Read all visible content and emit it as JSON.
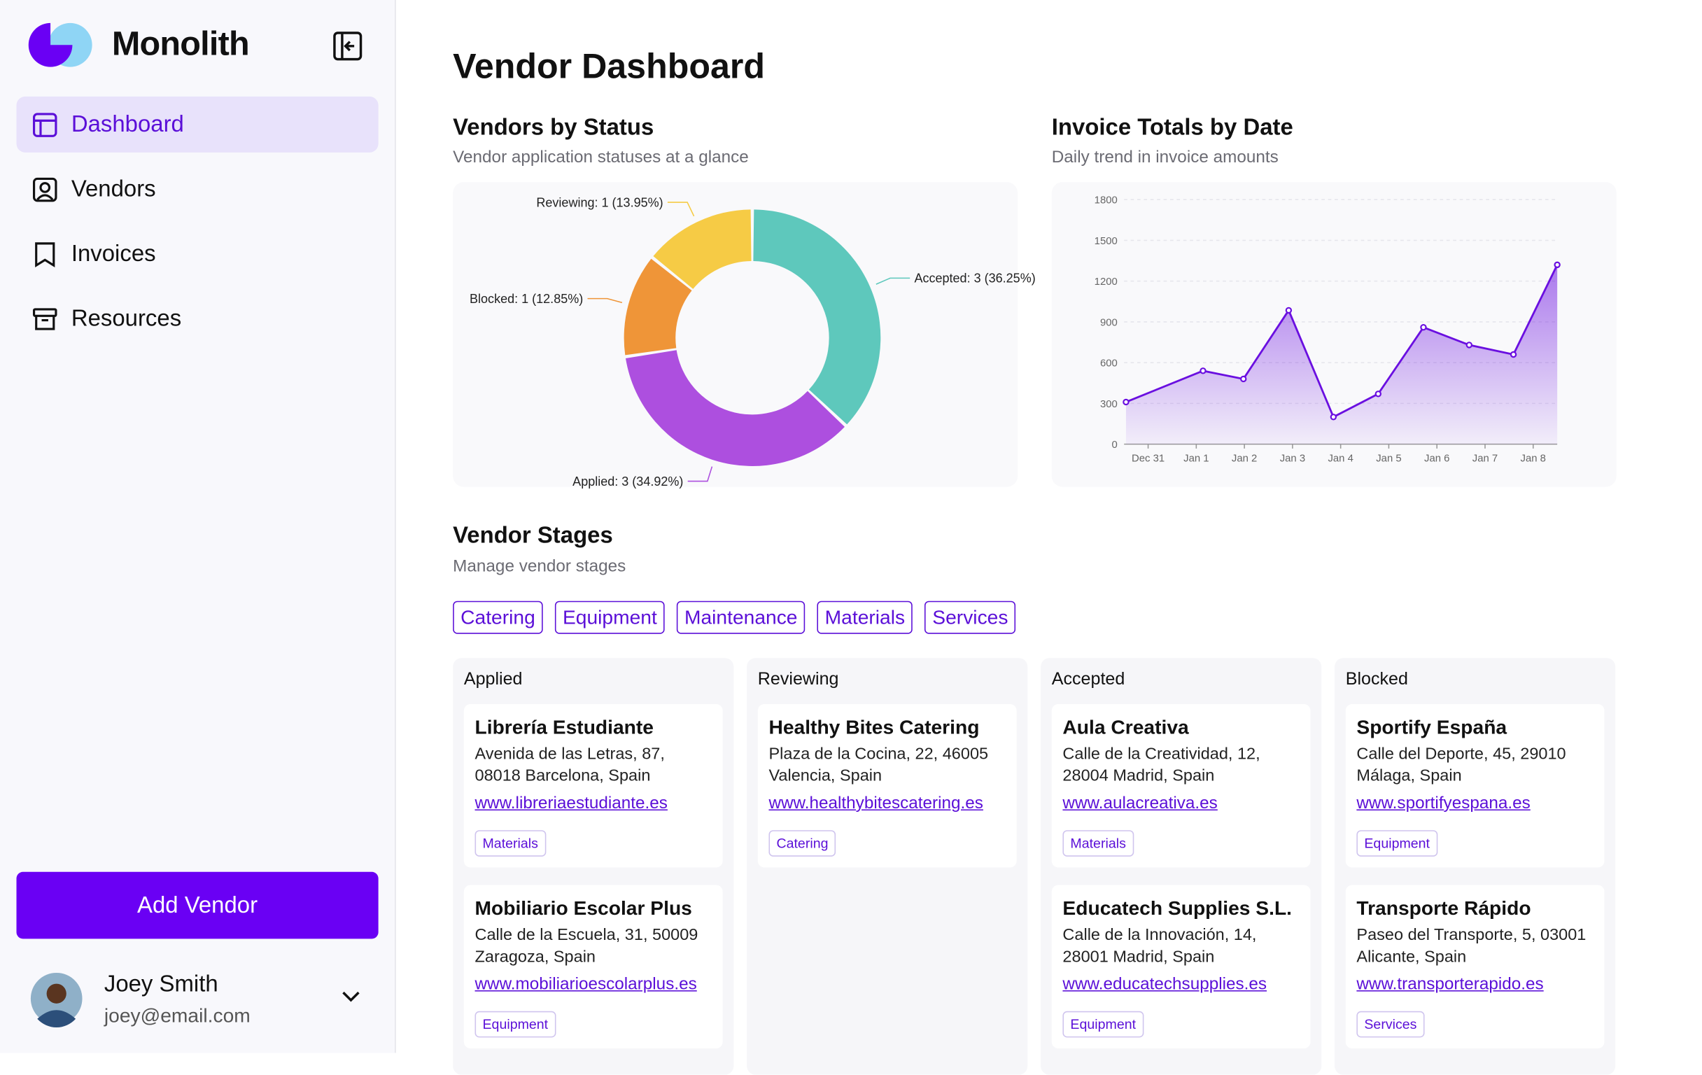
{
  "sidebar": {
    "brand": "Monolith",
    "nav": [
      "Dashboard",
      "Vendors",
      "Invoices",
      "Resources"
    ],
    "button": "Add Vendor",
    "user": {
      "name": "Joey Smith",
      "email": "joey@email.com"
    }
  },
  "header": {
    "title": "Vendor Dashboard"
  },
  "chart_data": [
    {
      "type": "pie",
      "title": "Vendors by Status",
      "subtitle": "Vendor application statuses at a glance",
      "values": [
        36.25,
        34.92,
        12.85,
        13.95
      ],
      "value_labels": [
        "Accepted: 3 (36.25%)",
        "Applied: 3 (34.92%)",
        "Blocked: 1 (12.85%)",
        "Reviewing: 1 (13.95%)"
      ],
      "colors": [
        "#5ec8bc",
        "#ad4fdf",
        "#ef9538",
        "#f6cb45"
      ]
    },
    {
      "type": "line",
      "title": "Invoice Totals by Date",
      "subtitle": "Daily trend in invoice amounts",
      "x": [
        -0.46,
        1.14,
        1.98,
        2.92,
        3.85,
        4.78,
        5.72,
        6.67,
        7.59,
        8.5
      ],
      "values": [
        310,
        540,
        480,
        985,
        200,
        370,
        860,
        730,
        660,
        1320
      ],
      "xlim": [
        -0.5,
        8.5
      ],
      "xticks": [
        {
          "value": 0,
          "label": "Dec 31"
        },
        {
          "value": 1,
          "label": "Jan 1"
        },
        {
          "value": 2,
          "label": "Jan 2"
        },
        {
          "value": 3,
          "label": "Jan 3"
        },
        {
          "value": 4,
          "label": "Jan 4"
        },
        {
          "value": 5,
          "label": "Jan 5"
        },
        {
          "value": 6,
          "label": "Jan 6"
        },
        {
          "value": 7,
          "label": "Jan 7"
        },
        {
          "value": 8,
          "label": "Jan 8"
        }
      ],
      "ylim": [
        0,
        1800
      ],
      "yticks": [
        0,
        300,
        600,
        900,
        1200,
        1500,
        1800
      ],
      "grid": true,
      "color": "#6a0fe0"
    }
  ],
  "stages": {
    "title": "Vendor Stages",
    "subtitle": "Manage vendor stages",
    "filters": [
      "Catering",
      "Equipment",
      "Maintenance",
      "Materials",
      "Services"
    ],
    "columns": [
      {
        "name": "Applied",
        "vendors": [
          {
            "name": "Librería Estudiante",
            "address": "Avenida de las Letras, 87, 08018 Barcelona, Spain",
            "url": "www.libreriaestudiante.es",
            "tag": "Materials"
          },
          {
            "name": "Mobiliario Escolar Plus",
            "address": "Calle de la Escuela, 31, 50009 Zaragoza, Spain",
            "url": "www.mobiliarioescolarplus.es",
            "tag": "Equipment"
          }
        ]
      },
      {
        "name": "Reviewing",
        "vendors": [
          {
            "name": "Healthy Bites Catering",
            "address": "Plaza de la Cocina, 22, 46005 Valencia, Spain",
            "url": "www.healthybitescatering.es",
            "tag": "Catering"
          }
        ]
      },
      {
        "name": "Accepted",
        "vendors": [
          {
            "name": "Aula Creativa",
            "address": "Calle de la Creatividad, 12, 28004 Madrid, Spain",
            "url": "www.aulacreativa.es",
            "tag": "Materials"
          },
          {
            "name": "Educatech Supplies S.L.",
            "address": "Calle de la Innovación, 14, 28001 Madrid, Spain",
            "url": "www.educatechsupplies.es",
            "tag": "Equipment"
          }
        ]
      },
      {
        "name": "Blocked",
        "vendors": [
          {
            "name": "Sportify España",
            "address": "Calle del Deporte, 45, 29010 Málaga, Spain",
            "url": "www.sportifyespana.es",
            "tag": "Equipment"
          },
          {
            "name": "Transporte Rápido",
            "address": "Paseo del Transporte, 5, 03001 Alicante, Spain",
            "url": "www.transporterapido.es",
            "tag": "Services"
          }
        ]
      }
    ]
  }
}
